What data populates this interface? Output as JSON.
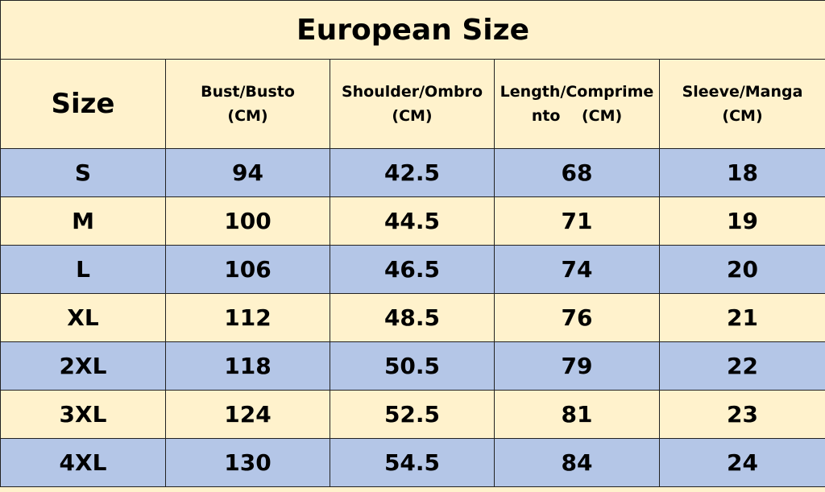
{
  "title": "European Size",
  "headers": [
    {
      "line1": "Size",
      "line2": ""
    },
    {
      "line1": "Bust/Busto",
      "line2": "(CM)"
    },
    {
      "line1": "Shoulder/Ombro",
      "line2": "(CM)"
    },
    {
      "line1": "Length/Comprime",
      "line2": "nto    (CM)"
    },
    {
      "line1": "Sleeve/Manga",
      "line2": "(CM)"
    }
  ],
  "rows": [
    [
      "S",
      "94",
      "42.5",
      "68",
      "18"
    ],
    [
      "M",
      "100",
      "44.5",
      "71",
      "19"
    ],
    [
      "L",
      "106",
      "46.5",
      "74",
      "20"
    ],
    [
      "XL",
      "112",
      "48.5",
      "76",
      "21"
    ],
    [
      "2XL",
      "118",
      "50.5",
      "79",
      "22"
    ],
    [
      "3XL",
      "124",
      "52.5",
      "81",
      "23"
    ],
    [
      "4XL",
      "130",
      "54.5",
      "84",
      "24"
    ]
  ],
  "colors": {
    "cream": "#fff2cc",
    "blue": "#b4c6e7",
    "border": "#222222"
  }
}
